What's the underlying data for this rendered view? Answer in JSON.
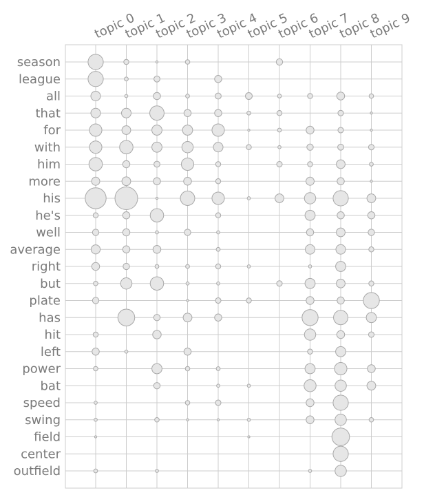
{
  "chart_data": {
    "type": "scatter",
    "subtype": "bubble-matrix",
    "grid": true,
    "legend": "none",
    "x_categories": [
      "topic 0",
      "topic 1",
      "topic 2",
      "topic 3",
      "topic 4",
      "topic 5",
      "topic 6",
      "topic 7",
      "topic 8",
      "topic 9"
    ],
    "y_categories": [
      "season",
      "league",
      "all",
      "that",
      "for",
      "with",
      "him",
      "more",
      "his",
      "he's",
      "well",
      "average",
      "right",
      "but",
      "plate",
      "has",
      "hit",
      "left",
      "power",
      "bat",
      "speed",
      "swing",
      "field",
      "center",
      "outfield"
    ],
    "weights": [
      [
        0.45,
        0.05,
        0.01,
        0.04,
        0.0,
        0.0,
        0.08,
        0.0,
        0.0,
        0.0
      ],
      [
        0.45,
        0.03,
        0.07,
        0.0,
        0.1,
        0.0,
        0.0,
        0.0,
        0.0,
        0.0
      ],
      [
        0.18,
        0.02,
        0.1,
        0.03,
        0.07,
        0.09,
        0.03,
        0.05,
        0.12,
        0.04
      ],
      [
        0.18,
        0.18,
        0.4,
        0.1,
        0.1,
        0.03,
        0.05,
        0.0,
        0.06,
        0.01
      ],
      [
        0.3,
        0.15,
        0.2,
        0.2,
        0.3,
        0.01,
        0.03,
        0.12,
        0.06,
        0.01
      ],
      [
        0.3,
        0.35,
        0.2,
        0.25,
        0.18,
        0.05,
        0.02,
        0.08,
        0.07,
        0.06
      ],
      [
        0.35,
        0.1,
        0.07,
        0.3,
        0.05,
        0.0,
        0.06,
        0.05,
        0.15,
        0.03
      ],
      [
        0.13,
        0.15,
        0.1,
        0.12,
        0.05,
        0.0,
        0.0,
        0.13,
        0.1,
        0.01
      ],
      [
        0.85,
        1.0,
        0.01,
        0.4,
        0.3,
        0.02,
        0.15,
        0.25,
        0.45,
        0.15
      ],
      [
        0.05,
        0.1,
        0.35,
        0.0,
        0.05,
        0.0,
        0.0,
        0.2,
        0.1,
        0.1
      ],
      [
        0.08,
        0.1,
        0.02,
        0.08,
        0.02,
        0.0,
        0.0,
        0.1,
        0.15,
        0.08
      ],
      [
        0.16,
        0.1,
        0.12,
        0.0,
        0.03,
        0.0,
        0.0,
        0.18,
        0.18,
        0.05
      ],
      [
        0.12,
        0.08,
        0.03,
        0.03,
        0.05,
        0.02,
        0.0,
        0.02,
        0.2,
        0.0
      ],
      [
        0.04,
        0.25,
        0.35,
        0.02,
        0.02,
        0.0,
        0.06,
        0.2,
        0.15,
        0.05
      ],
      [
        0.08,
        0.0,
        0.0,
        0.01,
        0.06,
        0.05,
        0.0,
        0.12,
        0.1,
        0.5
      ],
      [
        0.0,
        0.55,
        0.08,
        0.15,
        0.1,
        0.0,
        0.0,
        0.5,
        0.4,
        0.2
      ],
      [
        0.05,
        0.0,
        0.14,
        0.0,
        0.0,
        0.0,
        0.0,
        0.25,
        0.12,
        0.06
      ],
      [
        0.1,
        0.02,
        0.0,
        0.1,
        0.0,
        0.0,
        0.0,
        0.05,
        0.2,
        0.0
      ],
      [
        0.04,
        0.0,
        0.2,
        0.04,
        0.03,
        0.0,
        0.0,
        0.2,
        0.3,
        0.12
      ],
      [
        0.0,
        0.0,
        0.08,
        0.0,
        0.02,
        0.02,
        0.0,
        0.28,
        0.25,
        0.15
      ],
      [
        0.02,
        0.0,
        0.0,
        0.04,
        0.06,
        0.0,
        0.0,
        0.12,
        0.45,
        0.0
      ],
      [
        0.02,
        0.0,
        0.04,
        0.01,
        0.01,
        0.02,
        0.0,
        0.12,
        0.25,
        0.04
      ],
      [
        0.01,
        0.0,
        0.0,
        0.0,
        0.0,
        0.01,
        0.0,
        0.0,
        0.6,
        0.0
      ],
      [
        0.0,
        0.0,
        0.0,
        0.0,
        0.0,
        0.0,
        0.0,
        0.0,
        0.45,
        0.0
      ],
      [
        0.03,
        0.0,
        0.02,
        0.0,
        0.0,
        0.0,
        0.0,
        0.02,
        0.25,
        0.0
      ]
    ]
  }
}
